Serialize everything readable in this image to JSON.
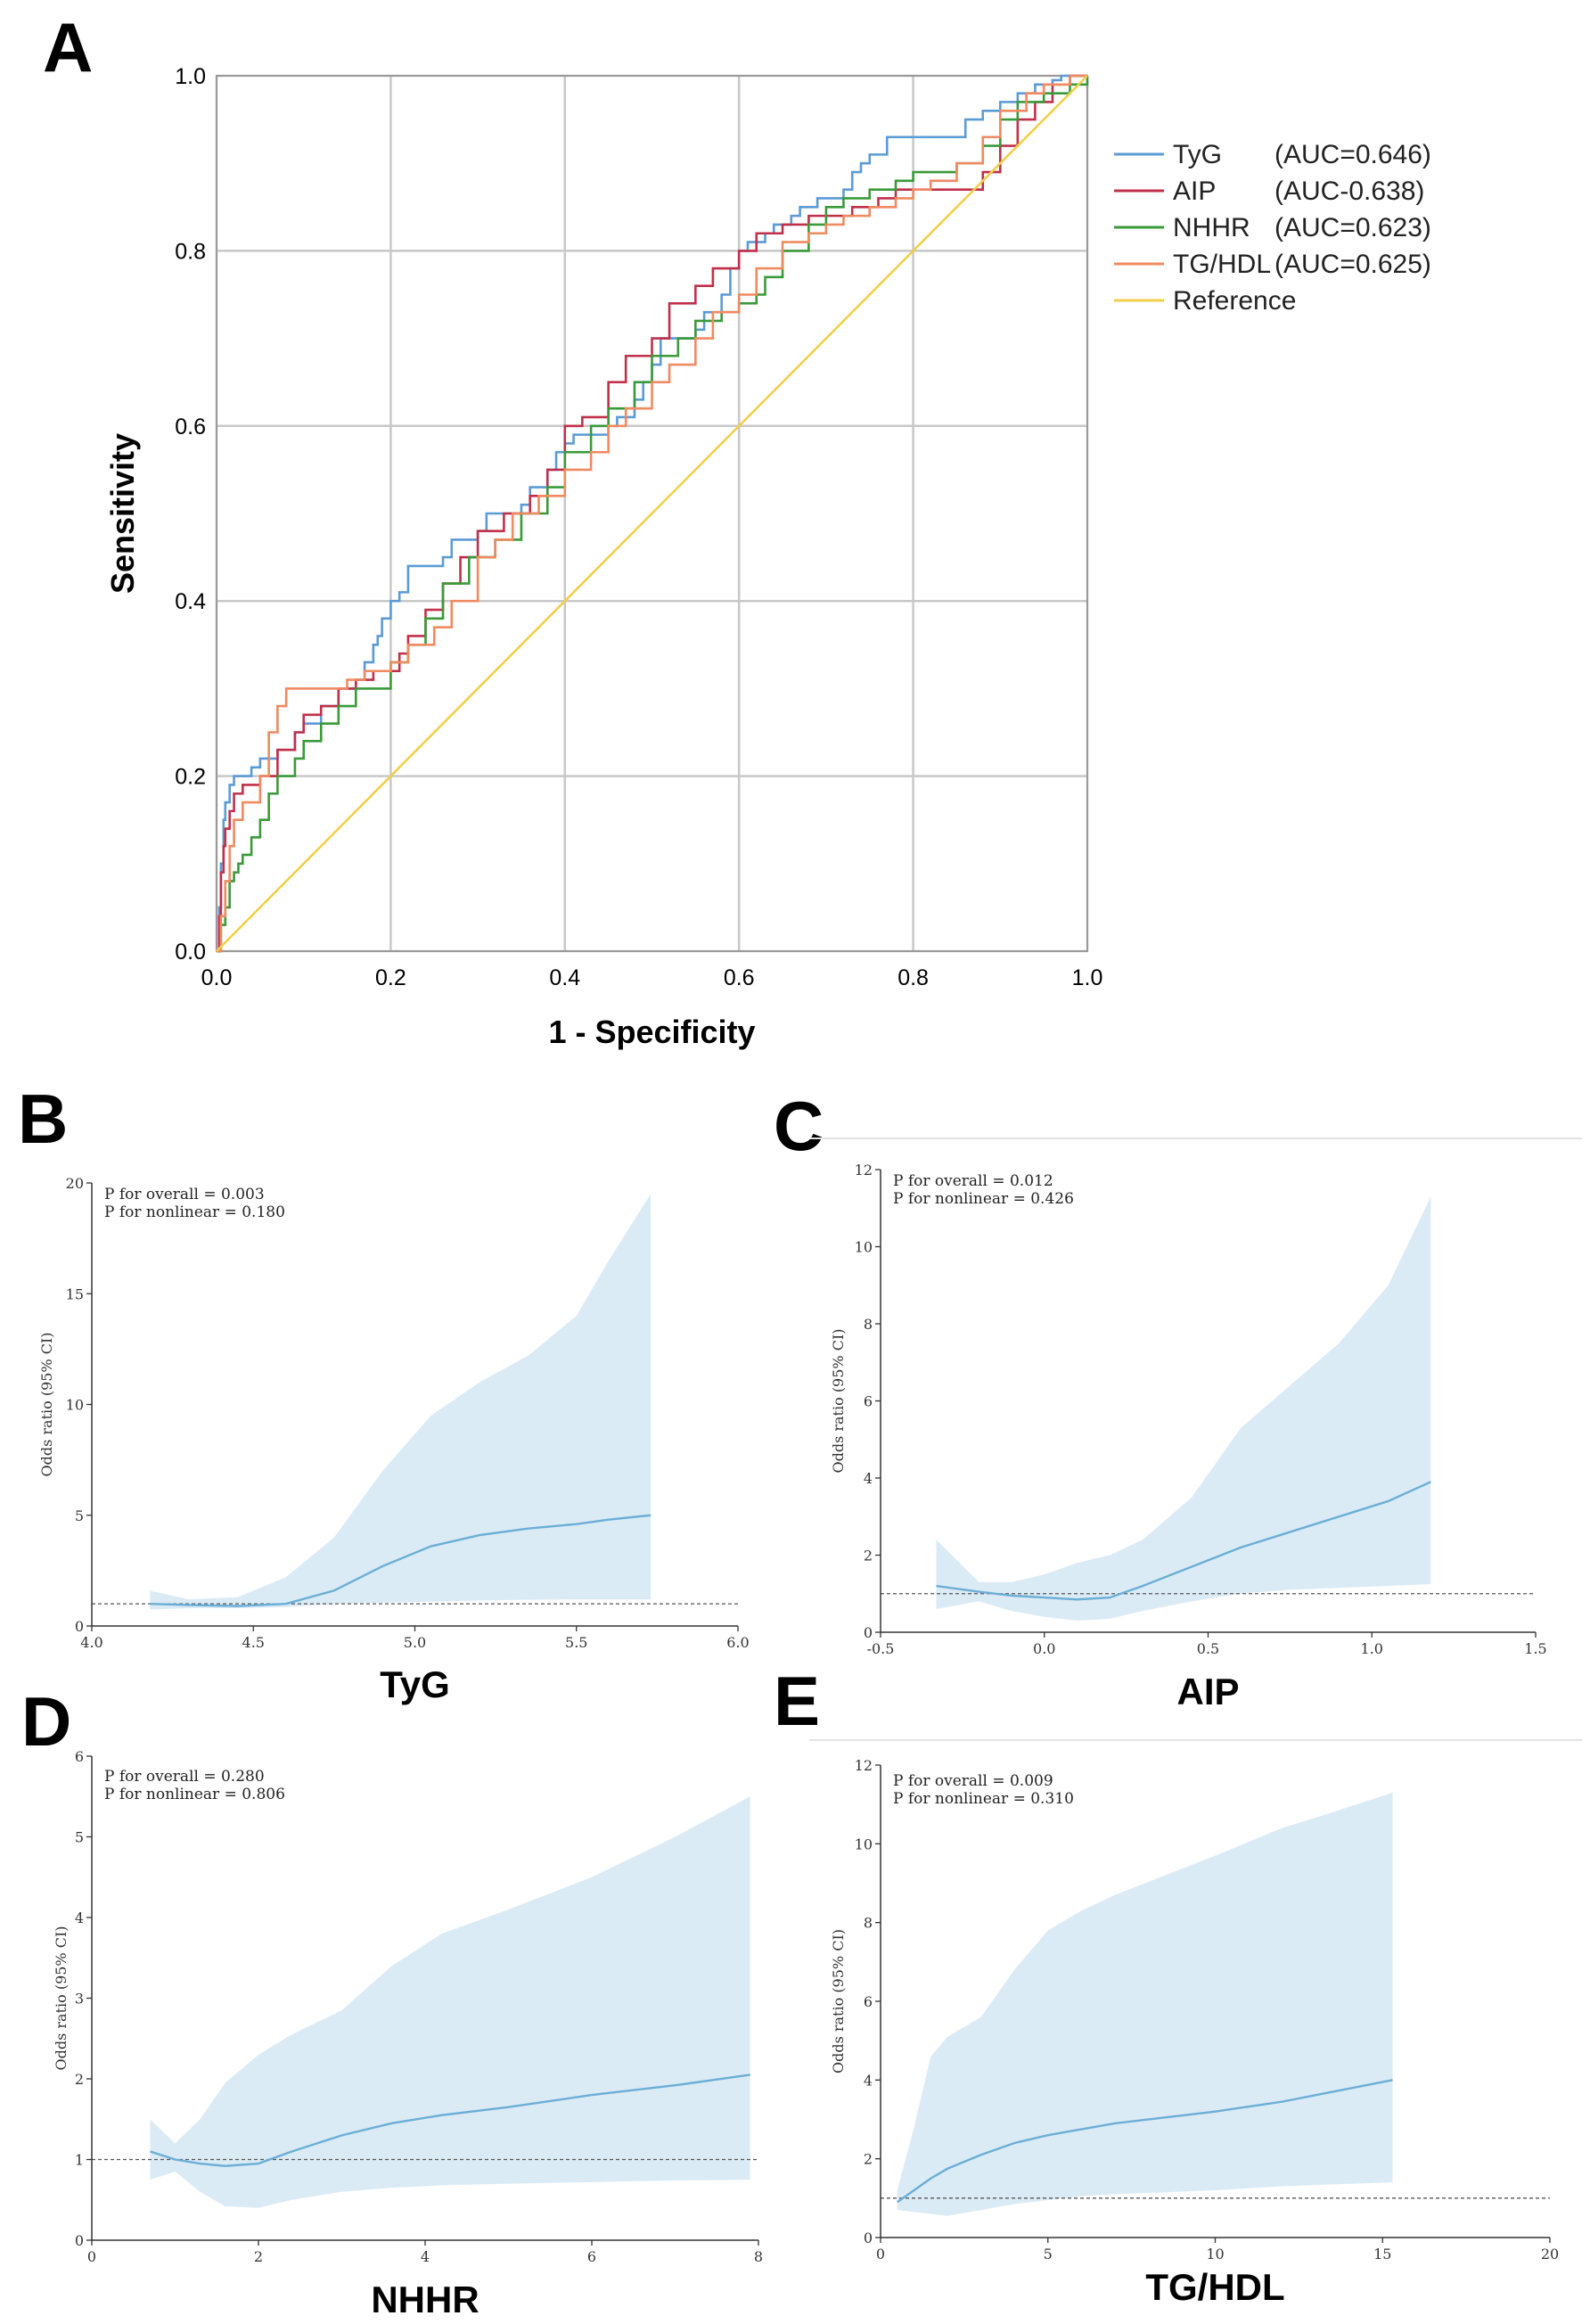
{
  "chart_data": [
    {
      "panel": "A",
      "type": "line",
      "title": "",
      "xlabel": "1 - Specificity",
      "ylabel": "Sensitivity",
      "xlim": [
        0,
        1
      ],
      "ylim": [
        0,
        1
      ],
      "xticks": [
        "0.0",
        "0.2",
        "0.4",
        "0.6",
        "0.8",
        "1.0"
      ],
      "yticks": [
        "0.0",
        "0.2",
        "0.4",
        "0.6",
        "0.8",
        "1.0"
      ],
      "grid": true,
      "legend_position": "right",
      "series": [
        {
          "name": "TyG",
          "auc": "(AUC=0.646)",
          "color": "#5b9bd5",
          "x": [
            0,
            0.003,
            0.005,
            0.008,
            0.01,
            0.015,
            0.02,
            0.03,
            0.04,
            0.05,
            0.07,
            0.09,
            0.1,
            0.12,
            0.14,
            0.16,
            0.17,
            0.18,
            0.185,
            0.19,
            0.2,
            0.21,
            0.22,
            0.26,
            0.27,
            0.3,
            0.31,
            0.35,
            0.36,
            0.38,
            0.39,
            0.4,
            0.41,
            0.45,
            0.46,
            0.48,
            0.49,
            0.5,
            0.51,
            0.55,
            0.56,
            0.58,
            0.59,
            0.6,
            0.61,
            0.63,
            0.64,
            0.66,
            0.67,
            0.69,
            0.72,
            0.73,
            0.74,
            0.75,
            0.77,
            0.78,
            0.8,
            0.81,
            0.84,
            0.85,
            0.86,
            0.88,
            0.9,
            0.92,
            0.94,
            0.96,
            0.97,
            0.98,
            1.0
          ],
          "y": [
            0,
            0.05,
            0.1,
            0.15,
            0.17,
            0.19,
            0.2,
            0.2,
            0.21,
            0.22,
            0.23,
            0.25,
            0.26,
            0.28,
            0.3,
            0.31,
            0.33,
            0.35,
            0.36,
            0.38,
            0.4,
            0.41,
            0.44,
            0.45,
            0.47,
            0.48,
            0.5,
            0.51,
            0.53,
            0.55,
            0.57,
            0.58,
            0.59,
            0.6,
            0.61,
            0.63,
            0.65,
            0.67,
            0.7,
            0.71,
            0.73,
            0.75,
            0.78,
            0.8,
            0.81,
            0.82,
            0.83,
            0.84,
            0.85,
            0.86,
            0.87,
            0.89,
            0.9,
            0.91,
            0.93,
            0.93,
            0.93,
            0.93,
            0.93,
            0.93,
            0.95,
            0.96,
            0.97,
            0.98,
            0.99,
            0.995,
            1.0,
            1.0,
            1.0
          ]
        },
        {
          "name": "AIP",
          "auc": "(AUC-0.638)",
          "color": "#c0304a",
          "x": [
            0,
            0.003,
            0.005,
            0.008,
            0.01,
            0.015,
            0.02,
            0.03,
            0.05,
            0.07,
            0.09,
            0.1,
            0.12,
            0.14,
            0.16,
            0.18,
            0.2,
            0.21,
            0.22,
            0.24,
            0.26,
            0.28,
            0.3,
            0.33,
            0.36,
            0.38,
            0.4,
            0.42,
            0.45,
            0.47,
            0.5,
            0.52,
            0.55,
            0.57,
            0.6,
            0.62,
            0.65,
            0.68,
            0.7,
            0.73,
            0.76,
            0.78,
            0.8,
            0.83,
            0.86,
            0.88,
            0.9,
            0.92,
            0.94,
            0.96,
            0.98,
            1.0
          ],
          "y": [
            0,
            0.04,
            0.09,
            0.12,
            0.14,
            0.16,
            0.18,
            0.19,
            0.2,
            0.23,
            0.25,
            0.27,
            0.28,
            0.3,
            0.31,
            0.32,
            0.32,
            0.34,
            0.36,
            0.39,
            0.42,
            0.45,
            0.48,
            0.5,
            0.52,
            0.55,
            0.6,
            0.61,
            0.65,
            0.68,
            0.7,
            0.74,
            0.76,
            0.78,
            0.8,
            0.82,
            0.83,
            0.84,
            0.84,
            0.85,
            0.86,
            0.87,
            0.87,
            0.87,
            0.87,
            0.89,
            0.92,
            0.95,
            0.97,
            0.99,
            1.0,
            1.0
          ]
        },
        {
          "name": "NHHR",
          "auc": "(AUC=0.623)",
          "color": "#3a9a3a",
          "x": [
            0,
            0.005,
            0.01,
            0.015,
            0.02,
            0.025,
            0.03,
            0.04,
            0.05,
            0.06,
            0.07,
            0.09,
            0.1,
            0.12,
            0.14,
            0.16,
            0.2,
            0.22,
            0.24,
            0.26,
            0.29,
            0.32,
            0.35,
            0.38,
            0.4,
            0.43,
            0.45,
            0.48,
            0.5,
            0.53,
            0.55,
            0.58,
            0.6,
            0.62,
            0.63,
            0.65,
            0.68,
            0.7,
            0.72,
            0.75,
            0.78,
            0.8,
            0.83,
            0.85,
            0.88,
            0.9,
            0.92,
            0.95,
            0.98,
            1.0
          ],
          "y": [
            0,
            0.03,
            0.05,
            0.08,
            0.09,
            0.1,
            0.11,
            0.13,
            0.15,
            0.18,
            0.2,
            0.22,
            0.24,
            0.26,
            0.28,
            0.3,
            0.33,
            0.35,
            0.38,
            0.42,
            0.45,
            0.47,
            0.5,
            0.53,
            0.57,
            0.6,
            0.62,
            0.65,
            0.68,
            0.7,
            0.72,
            0.73,
            0.74,
            0.75,
            0.77,
            0.8,
            0.83,
            0.85,
            0.86,
            0.87,
            0.88,
            0.89,
            0.89,
            0.9,
            0.92,
            0.95,
            0.97,
            0.98,
            0.99,
            1.0
          ]
        },
        {
          "name": "TG/HDL",
          "auc": "(AUC=0.625)",
          "color": "#f08a60",
          "x": [
            0,
            0.005,
            0.01,
            0.015,
            0.02,
            0.03,
            0.05,
            0.06,
            0.07,
            0.08,
            0.1,
            0.13,
            0.15,
            0.17,
            0.2,
            0.22,
            0.25,
            0.27,
            0.3,
            0.32,
            0.34,
            0.37,
            0.4,
            0.43,
            0.45,
            0.47,
            0.5,
            0.52,
            0.55,
            0.57,
            0.6,
            0.62,
            0.65,
            0.68,
            0.7,
            0.72,
            0.75,
            0.78,
            0.8,
            0.82,
            0.85,
            0.88,
            0.9,
            0.93,
            0.95,
            0.98,
            1.0
          ],
          "y": [
            0,
            0.04,
            0.08,
            0.12,
            0.15,
            0.17,
            0.2,
            0.25,
            0.28,
            0.3,
            0.3,
            0.3,
            0.31,
            0.32,
            0.33,
            0.35,
            0.37,
            0.4,
            0.45,
            0.47,
            0.5,
            0.52,
            0.55,
            0.57,
            0.6,
            0.62,
            0.65,
            0.67,
            0.7,
            0.73,
            0.75,
            0.78,
            0.81,
            0.82,
            0.83,
            0.84,
            0.85,
            0.86,
            0.87,
            0.88,
            0.9,
            0.93,
            0.96,
            0.98,
            0.99,
            1.0,
            1.0
          ]
        },
        {
          "name": "Reference",
          "auc": "",
          "color": "#f2cf4a",
          "x": [
            0,
            1
          ],
          "y": [
            0,
            1
          ]
        }
      ]
    },
    {
      "panel": "B",
      "type": "area",
      "xlabel": "TyG",
      "ylabel": "Odds ratio (95% CI)",
      "xlim": [
        4.0,
        6.0
      ],
      "ylim": [
        0,
        20
      ],
      "xticks": [
        4.0,
        4.5,
        5.0,
        5.5,
        6.0
      ],
      "yticks": [
        0,
        5,
        10,
        15,
        20
      ],
      "xtick_labels": [
        "4.0",
        "4.5",
        "5.0",
        "5.5",
        "6.0"
      ],
      "ytick_labels": [
        "0",
        "5",
        "10",
        "15",
        "20"
      ],
      "reference_line": 1,
      "annotations": [
        "P for overall = 0.003",
        "P for nonlinear = 0.180"
      ],
      "x": [
        4.18,
        4.3,
        4.45,
        4.6,
        4.75,
        4.9,
        5.05,
        5.2,
        5.35,
        5.5,
        5.6,
        5.73
      ],
      "or": [
        1.0,
        0.95,
        0.9,
        1.0,
        1.6,
        2.7,
        3.6,
        4.1,
        4.4,
        4.6,
        4.8,
        5.0
      ],
      "lower": [
        0.75,
        0.8,
        0.8,
        0.85,
        1.0,
        1.05,
        1.1,
        1.15,
        1.18,
        1.2,
        1.2,
        1.2
      ],
      "upper": [
        1.6,
        1.2,
        1.3,
        2.2,
        4.0,
        7.0,
        9.5,
        11.0,
        12.2,
        14.0,
        16.5,
        19.5
      ]
    },
    {
      "panel": "C",
      "type": "area",
      "xlabel": "AIP",
      "ylabel": "Odds ratio (95% CI)",
      "xlim": [
        -0.5,
        1.5
      ],
      "ylim": [
        0,
        12
      ],
      "xticks": [
        -0.5,
        0.0,
        0.5,
        1.0,
        1.5
      ],
      "yticks": [
        0,
        2,
        4,
        6,
        8,
        10,
        12
      ],
      "xtick_labels": [
        "-0.5",
        "0.0",
        "0.5",
        "1.0",
        "1.5"
      ],
      "ytick_labels": [
        "0",
        "2",
        "4",
        "6",
        "8",
        "10",
        "12"
      ],
      "reference_line": 1,
      "annotations": [
        "P for overall = 0.012",
        "P for nonlinear = 0.426"
      ],
      "x": [
        -0.33,
        -0.2,
        -0.1,
        0.0,
        0.1,
        0.2,
        0.3,
        0.45,
        0.6,
        0.75,
        0.9,
        1.05,
        1.18
      ],
      "or": [
        1.2,
        1.05,
        0.95,
        0.9,
        0.85,
        0.9,
        1.2,
        1.7,
        2.2,
        2.6,
        3.0,
        3.4,
        3.9
      ],
      "lower": [
        0.6,
        0.8,
        0.55,
        0.4,
        0.3,
        0.35,
        0.55,
        0.8,
        1.0,
        1.1,
        1.15,
        1.2,
        1.25
      ],
      "upper": [
        2.4,
        1.3,
        1.3,
        1.5,
        1.8,
        2.0,
        2.4,
        3.5,
        5.3,
        6.4,
        7.5,
        9.0,
        11.3
      ]
    },
    {
      "panel": "D",
      "type": "area",
      "xlabel": "NHHR",
      "ylabel": "Odds ratio (95% CI)",
      "xlim": [
        0,
        8
      ],
      "ylim": [
        0,
        6
      ],
      "xticks": [
        0,
        2,
        4,
        6,
        8
      ],
      "yticks": [
        0,
        1,
        2,
        3,
        4,
        5,
        6
      ],
      "xtick_labels": [
        "0",
        "2",
        "4",
        "6",
        "8"
      ],
      "ytick_labels": [
        "0",
        "1",
        "2",
        "3",
        "4",
        "5",
        "6"
      ],
      "reference_line": 1,
      "annotations": [
        "P for overall = 0.280",
        "P for nonlinear = 0.806"
      ],
      "x": [
        0.7,
        1.0,
        1.3,
        1.6,
        2.0,
        2.4,
        3.0,
        3.6,
        4.2,
        5.0,
        6.0,
        7.0,
        7.9
      ],
      "or": [
        1.1,
        1.0,
        0.95,
        0.92,
        0.95,
        1.1,
        1.3,
        1.45,
        1.55,
        1.65,
        1.8,
        1.92,
        2.05
      ],
      "lower": [
        0.75,
        0.85,
        0.6,
        0.42,
        0.4,
        0.5,
        0.6,
        0.65,
        0.68,
        0.7,
        0.72,
        0.74,
        0.75
      ],
      "upper": [
        1.5,
        1.2,
        1.5,
        1.95,
        2.3,
        2.55,
        2.85,
        3.4,
        3.8,
        4.1,
        4.5,
        5.0,
        5.5
      ]
    },
    {
      "panel": "E",
      "type": "area",
      "xlabel": "TG/HDL",
      "ylabel": "Odds ratio (95% CI)",
      "xlim": [
        0,
        20
      ],
      "ylim": [
        0,
        12
      ],
      "xticks": [
        0,
        5,
        10,
        15,
        20
      ],
      "yticks": [
        0,
        2,
        4,
        6,
        8,
        10,
        12
      ],
      "xtick_labels": [
        "0",
        "5",
        "10",
        "15",
        "20"
      ],
      "ytick_labels": [
        "0",
        "2",
        "4",
        "6",
        "8",
        "10",
        "12"
      ],
      "reference_line": 1,
      "annotations": [
        "P for overall = 0.009",
        "P for nonlinear = 0.310"
      ],
      "x": [
        0.5,
        1.0,
        1.5,
        2.0,
        3.0,
        4.0,
        5.0,
        6.0,
        7.0,
        8.5,
        10.0,
        12.0,
        13.5,
        15.3
      ],
      "or": [
        0.9,
        1.2,
        1.5,
        1.75,
        2.1,
        2.4,
        2.6,
        2.75,
        2.9,
        3.05,
        3.2,
        3.45,
        3.7,
        4.0
      ],
      "lower": [
        0.7,
        0.65,
        0.6,
        0.55,
        0.7,
        0.85,
        0.95,
        1.05,
        1.1,
        1.15,
        1.2,
        1.3,
        1.35,
        1.4
      ],
      "upper": [
        1.2,
        2.8,
        4.6,
        5.1,
        5.6,
        6.8,
        7.8,
        8.3,
        8.7,
        9.2,
        9.7,
        10.4,
        10.8,
        11.3
      ]
    }
  ],
  "panels": {
    "a": {
      "letter": "A"
    },
    "b": {
      "letter": "B"
    },
    "c": {
      "letter": "C"
    },
    "d": {
      "letter": "D"
    },
    "e": {
      "letter": "E"
    }
  }
}
